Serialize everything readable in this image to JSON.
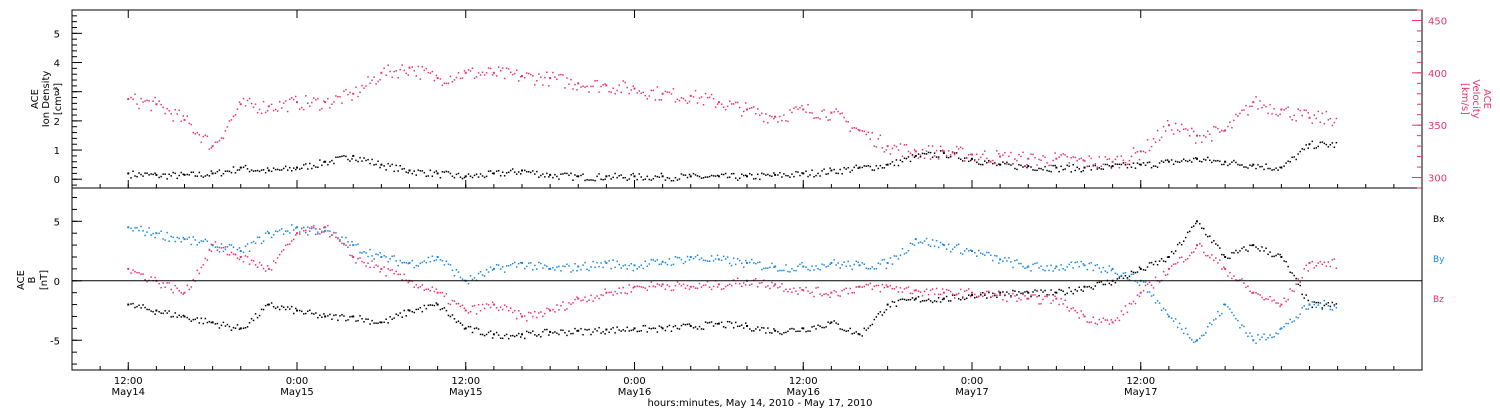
{
  "chart_data": [
    {
      "type": "scatter",
      "panel": "top",
      "ylabel_left": [
        "ACE",
        "Ion Density",
        "[cm⁻³]"
      ],
      "ylabel_right": [
        "ACE",
        "Velocity",
        "[km/s]"
      ],
      "ylim_left": [
        -0.3,
        5.8
      ],
      "yticks_left": [
        0,
        1,
        2,
        3,
        4,
        5
      ],
      "ylim_right": [
        290,
        460
      ],
      "yticks_right": [
        300,
        350,
        400,
        450
      ],
      "colors": {
        "density": "#000000",
        "velocity": "#e8346a"
      },
      "series": [
        {
          "name": "Ion Density",
          "axis": "left",
          "color": "#000000",
          "x_hours": [
            0,
            2,
            4,
            6,
            8,
            10,
            12,
            14,
            16,
            18,
            20,
            22,
            24,
            26,
            28,
            30,
            32,
            34,
            36,
            38,
            40,
            42,
            44,
            46,
            48,
            50,
            52,
            54,
            56,
            58,
            60,
            62,
            64,
            66,
            68,
            70,
            72,
            74,
            76,
            78,
            80,
            82,
            84
          ],
          "y": [
            0.2,
            0.15,
            0.15,
            0.2,
            0.4,
            0.3,
            0.4,
            0.6,
            0.8,
            0.5,
            0.3,
            0.2,
            0.1,
            0.2,
            0.3,
            0.15,
            0.1,
            0.1,
            0.1,
            0.1,
            0.1,
            0.1,
            0.1,
            0.15,
            0.2,
            0.3,
            0.4,
            0.5,
            0.8,
            0.9,
            0.7,
            0.5,
            0.45,
            0.4,
            0.4,
            0.45,
            0.5,
            0.6,
            0.7,
            0.6,
            0.5,
            0.4,
            1.2
          ]
        },
        {
          "name": "Velocity",
          "axis": "right",
          "color": "#e8346a",
          "x_hours": [
            0,
            2,
            4,
            6,
            8,
            10,
            12,
            14,
            16,
            18,
            20,
            22,
            24,
            26,
            28,
            30,
            32,
            34,
            36,
            38,
            40,
            42,
            44,
            46,
            48,
            50,
            52,
            54,
            56,
            58,
            60,
            62,
            64,
            66,
            68,
            70,
            72,
            74,
            76,
            78,
            80,
            82,
            84
          ],
          "y": [
            375,
            370,
            355,
            330,
            370,
            368,
            372,
            372,
            380,
            400,
            405,
            395,
            400,
            400,
            397,
            395,
            390,
            388,
            385,
            380,
            378,
            372,
            365,
            358,
            365,
            362,
            345,
            330,
            325,
            325,
            322,
            320,
            318,
            318,
            316,
            315,
            325,
            350,
            340,
            345,
            372,
            365,
            357
          ]
        }
      ]
    },
    {
      "type": "scatter",
      "panel": "bottom",
      "ylabel_left": [
        "ACE",
        "B",
        "[nT]"
      ],
      "ylim": [
        -7.5,
        7.8
      ],
      "yticks": [
        -5,
        0,
        5
      ],
      "zero_line": true,
      "legend": [
        "Bx",
        "By",
        "Bz"
      ],
      "legend_position": "right",
      "series": [
        {
          "name": "Bx",
          "color": "#000000",
          "x_hours": [
            0,
            2,
            4,
            6,
            8,
            10,
            12,
            14,
            16,
            18,
            20,
            22,
            24,
            26,
            28,
            30,
            32,
            34,
            36,
            38,
            40,
            42,
            44,
            46,
            48,
            50,
            52,
            54,
            56,
            58,
            60,
            62,
            64,
            66,
            68,
            70,
            72,
            74,
            76,
            78,
            80,
            82,
            84
          ],
          "y": [
            -2,
            -2.5,
            -3,
            -3.5,
            -4,
            -2,
            -2.5,
            -3,
            -3,
            -3.5,
            -2.5,
            -2,
            -4,
            -4.5,
            -4.5,
            -4.3,
            -4.2,
            -4.1,
            -4,
            -4,
            -3.8,
            -3.6,
            -3.8,
            -4.2,
            -4,
            -3.5,
            -4.5,
            -2,
            -1.5,
            -1.5,
            -1.2,
            -1,
            -1,
            -1,
            -0.5,
            0,
            1,
            2,
            5,
            2,
            3,
            2,
            -2
          ]
        },
        {
          "name": "By",
          "color": "#1a87e0",
          "x_hours": [
            0,
            2,
            4,
            6,
            8,
            10,
            12,
            14,
            16,
            18,
            20,
            22,
            24,
            26,
            28,
            30,
            32,
            34,
            36,
            38,
            40,
            42,
            44,
            46,
            48,
            50,
            52,
            54,
            56,
            58,
            60,
            62,
            64,
            66,
            68,
            70,
            72,
            74,
            76,
            78,
            80,
            82,
            84
          ],
          "y": [
            4.5,
            4,
            3.5,
            3,
            2.5,
            4,
            4.5,
            4.2,
            3,
            2,
            1.5,
            2,
            0,
            1,
            1.5,
            1,
            1.2,
            1.5,
            1.3,
            1.6,
            2,
            1.8,
            1.5,
            1.2,
            1.2,
            1.5,
            1.3,
            1.5,
            3.5,
            3,
            2.5,
            1.8,
            1.2,
            1.2,
            1.3,
            1,
            0,
            -3,
            -5,
            -2,
            -5,
            -4,
            -2
          ]
        },
        {
          "name": "Bz",
          "color": "#e8346a",
          "x_hours": [
            0,
            2,
            4,
            6,
            8,
            10,
            12,
            14,
            16,
            18,
            20,
            22,
            24,
            26,
            28,
            30,
            32,
            34,
            36,
            38,
            40,
            42,
            44,
            46,
            48,
            50,
            52,
            54,
            56,
            58,
            60,
            62,
            64,
            66,
            68,
            70,
            72,
            74,
            76,
            78,
            80,
            82,
            84
          ],
          "y": [
            1,
            0,
            -1,
            3,
            2,
            1,
            4,
            4.5,
            2,
            1,
            0,
            -1,
            -2.5,
            -2,
            -3,
            -2.5,
            -1.5,
            -1,
            -0.5,
            -0.3,
            -0.5,
            -0.3,
            0,
            -0.3,
            -0.8,
            -1,
            -0.5,
            -0.5,
            -0.8,
            -1,
            -1,
            -1.2,
            -1.5,
            -1.5,
            -3,
            -3.5,
            -1,
            1,
            3,
            1,
            -1,
            -2,
            1.5
          ]
        }
      ]
    }
  ],
  "x_axis": {
    "range_hours": [
      -4,
      92
    ],
    "ticks": [
      {
        "hour": 0,
        "time": "12:00",
        "date": "May14"
      },
      {
        "hour": 12,
        "time": "0:00",
        "date": "May15"
      },
      {
        "hour": 24,
        "time": "12:00",
        "date": "May15"
      },
      {
        "hour": 36,
        "time": "0:00",
        "date": "May16"
      },
      {
        "hour": 48,
        "time": "12:00",
        "date": "May16"
      },
      {
        "hour": 60,
        "time": "0:00",
        "date": "May17"
      },
      {
        "hour": 72,
        "time": "12:00",
        "date": "May17"
      }
    ],
    "label": "hours:minutes, May 14, 2010 - May 17, 2010"
  },
  "text": {
    "top_left_label": [
      "ACE",
      "Ion Density",
      "[cm⁻³]"
    ],
    "top_right_label": [
      "ACE",
      "Velocity",
      "[km/s]"
    ],
    "bottom_left_label": [
      "ACE",
      "B",
      "[nT]"
    ],
    "legend_bx": "Bx",
    "legend_by": "By",
    "legend_bz": "Bz"
  }
}
